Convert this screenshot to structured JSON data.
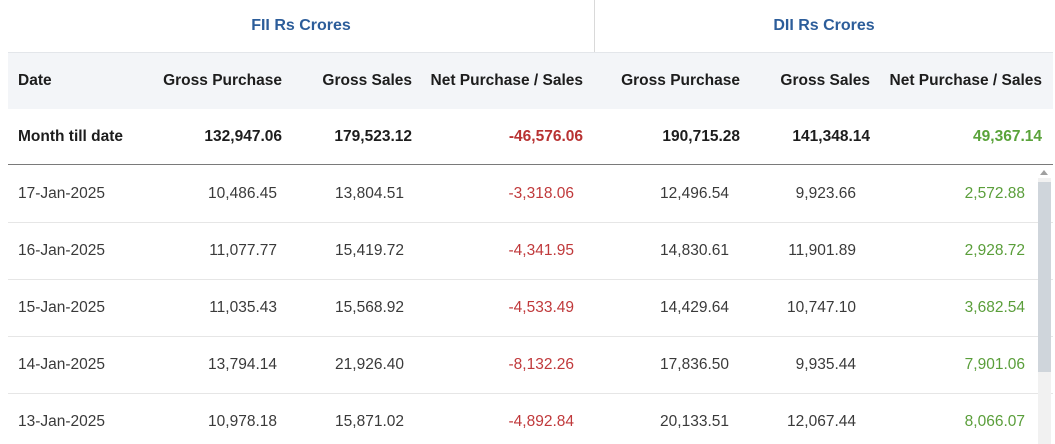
{
  "groups": {
    "fii": "FII Rs Crores",
    "dii": "DII Rs Crores"
  },
  "columns": {
    "date": "Date",
    "fii_gross_purchase": "Gross Purchase",
    "fii_gross_sales": "Gross Sales",
    "fii_net": "Net Purchase / Sales",
    "dii_gross_purchase": "Gross Purchase",
    "dii_gross_sales": "Gross Sales",
    "dii_net": "Net Purchase / Sales"
  },
  "month_till_date": {
    "label": "Month till date",
    "fii_gross_purchase": "132,947.06",
    "fii_gross_sales": "179,523.12",
    "fii_net": "-46,576.06",
    "dii_gross_purchase": "190,715.28",
    "dii_gross_sales": "141,348.14",
    "dii_net": "49,367.14"
  },
  "rows": [
    {
      "date": "17-Jan-2025",
      "fii_gross_purchase": "10,486.45",
      "fii_gross_sales": "13,804.51",
      "fii_net": "-3,318.06",
      "dii_gross_purchase": "12,496.54",
      "dii_gross_sales": "9,923.66",
      "dii_net": "2,572.88"
    },
    {
      "date": "16-Jan-2025",
      "fii_gross_purchase": "11,077.77",
      "fii_gross_sales": "15,419.72",
      "fii_net": "-4,341.95",
      "dii_gross_purchase": "14,830.61",
      "dii_gross_sales": "11,901.89",
      "dii_net": "2,928.72"
    },
    {
      "date": "15-Jan-2025",
      "fii_gross_purchase": "11,035.43",
      "fii_gross_sales": "15,568.92",
      "fii_net": "-4,533.49",
      "dii_gross_purchase": "14,429.64",
      "dii_gross_sales": "10,747.10",
      "dii_net": "3,682.54"
    },
    {
      "date": "14-Jan-2025",
      "fii_gross_purchase": "13,794.14",
      "fii_gross_sales": "21,926.40",
      "fii_net": "-8,132.26",
      "dii_gross_purchase": "17,836.50",
      "dii_gross_sales": "9,935.44",
      "dii_net": "7,901.06"
    },
    {
      "date": "13-Jan-2025",
      "fii_gross_purchase": "10,978.18",
      "fii_gross_sales": "15,871.02",
      "fii_net": "-4,892.84",
      "dii_gross_purchase": "20,133.51",
      "dii_gross_sales": "12,067.44",
      "dii_net": "8,066.07"
    }
  ],
  "colors": {
    "header_blue": "#2c5d9a",
    "negative": "#c0393b",
    "positive": "#5a9e3a"
  }
}
